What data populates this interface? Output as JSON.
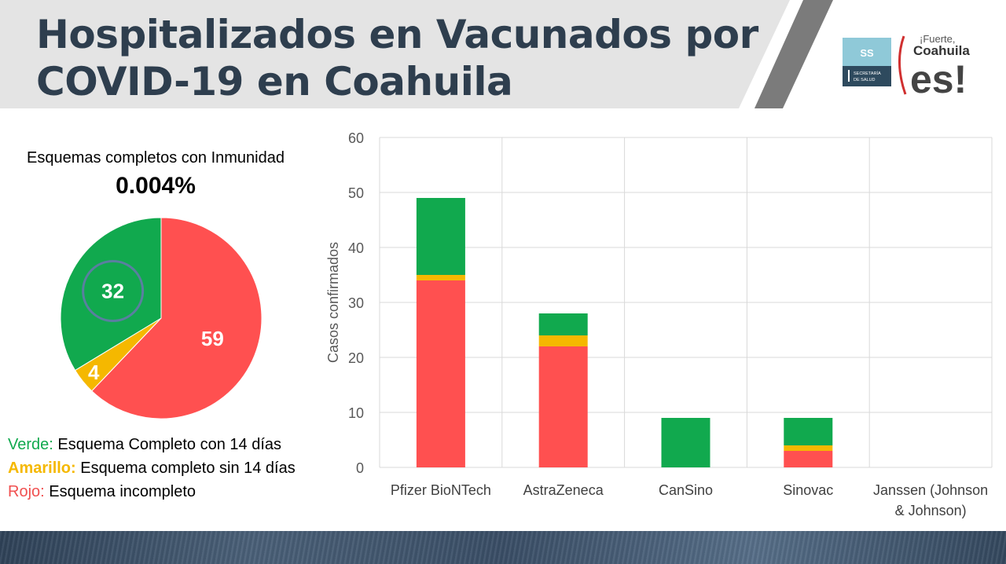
{
  "slide": {
    "title_line1": "Hospitalizados en Vacunados por",
    "title_line2": "COVID-19 en Coahuila"
  },
  "logos": {
    "ss_text": "SS",
    "ss_subtext_line1": "SECRETARÍA",
    "ss_subtext_line2": "DE SALUD",
    "coahuila_tagline": "¡Fuerte,",
    "coahuila_name": "Coahuila",
    "coahuila_es": "es!"
  },
  "colors": {
    "green": "#11a94e",
    "yellow": "#f5b800",
    "red": "#ff5050",
    "title": "#2e3e4e"
  },
  "inmunidad": {
    "label": "Esquemas completos con Inmunidad",
    "value": "0.004%"
  },
  "legend": [
    {
      "key": "Verde:",
      "text": "Esquema Completo con 14 días"
    },
    {
      "key": "Amarillo:",
      "text": "Esquema completo sin 14 días"
    },
    {
      "key": "Rojo:",
      "text": "Esquema incompleto"
    }
  ],
  "chart_data": [
    {
      "type": "pie",
      "categories": [
        "Rojo",
        "Amarillo",
        "Verde"
      ],
      "values": [
        59,
        4,
        32
      ],
      "colors": [
        "#ff5050",
        "#f5b800",
        "#11a94e"
      ],
      "labels": [
        "59",
        "4",
        "32"
      ]
    },
    {
      "type": "bar",
      "stacked": true,
      "categories": [
        "Pfizer BioNTech",
        "AstraZeneca",
        "CanSino",
        "Sinovac",
        "Janssen (Johnson & Johnson)"
      ],
      "category_lines": [
        [
          "Pfizer BioNTech"
        ],
        [
          "AstraZeneca"
        ],
        [
          "CanSino"
        ],
        [
          "Sinovac"
        ],
        [
          "Janssen (Johnson",
          "& Johnson)"
        ]
      ],
      "series": [
        {
          "name": "Rojo",
          "values": [
            34,
            22,
            0,
            3,
            0
          ],
          "color": "#ff5050"
        },
        {
          "name": "Amarillo",
          "values": [
            1,
            2,
            0,
            1,
            0
          ],
          "color": "#f5b800"
        },
        {
          "name": "Verde",
          "values": [
            14,
            4,
            9,
            5,
            0
          ],
          "color": "#11a94e"
        }
      ],
      "ylabel": "Casos confirmados",
      "ylim": [
        0,
        60
      ],
      "yticks": [
        0,
        10,
        20,
        30,
        40,
        50,
        60
      ],
      "grid": true
    }
  ]
}
